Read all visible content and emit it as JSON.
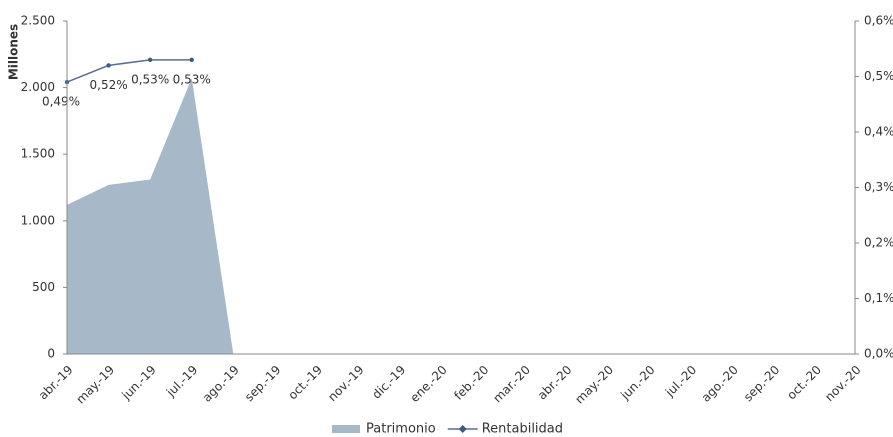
{
  "chart_data": {
    "type": "area-line",
    "y_axis_label": "Millones",
    "categories": [
      "abr.-19",
      "may.-19",
      "jun.-19",
      "jul.-19",
      "ago.-19",
      "sep.-19",
      "oct.-19",
      "nov.-19",
      "dic.-19",
      "ene.-20",
      "feb.-20",
      "mar.-20",
      "abr.-20",
      "may.-20",
      "jun.-20",
      "jul.-20",
      "ago.-20",
      "sep.-20",
      "oct.-20",
      "nov.-20"
    ],
    "series": [
      {
        "name": "Patrimonio",
        "color": "#a7b9c9",
        "values": [
          1120,
          1270,
          1310,
          2070,
          0,
          0,
          0,
          0,
          0,
          0,
          0,
          0,
          0,
          0,
          0,
          0,
          0,
          0,
          0,
          0
        ]
      },
      {
        "name": "Rentabilidad",
        "color": "#5b6f8e",
        "axis": "y2",
        "values": [
          0.49,
          0.52,
          0.53,
          0.53,
          null,
          null,
          null,
          null,
          null,
          null,
          null,
          null,
          null,
          null,
          null,
          null,
          null,
          null,
          null,
          null
        ],
        "value_labels": [
          "0,49%",
          "0,52%",
          "0,53%",
          "0,53%",
          null,
          null,
          null,
          null,
          null,
          null,
          null,
          null,
          null,
          null,
          null,
          null,
          null,
          null,
          null,
          null
        ]
      }
    ],
    "ylim": [
      0,
      2500
    ],
    "yticks": [
      0,
      500,
      {
        "value": 1000,
        "label": "1.000"
      },
      {
        "value": 1500,
        "label": "1.500"
      },
      {
        "value": 2000,
        "label": "2.000"
      },
      {
        "value": 2500,
        "label": "2.500"
      }
    ],
    "y2lim": [
      0,
      0.6
    ],
    "y2ticks": [
      {
        "value": 0,
        "label": "0,0%"
      },
      {
        "value": 0.1,
        "label": "0,1%"
      },
      {
        "value": 0.2,
        "label": "0,2%"
      },
      {
        "value": 0.3,
        "label": "0,3%"
      },
      {
        "value": 0.4,
        "label": "0,4%"
      },
      {
        "value": 0.5,
        "label": "0,5%"
      },
      {
        "value": 0.6,
        "label": "0,6%"
      }
    ],
    "legend": "bottom"
  }
}
